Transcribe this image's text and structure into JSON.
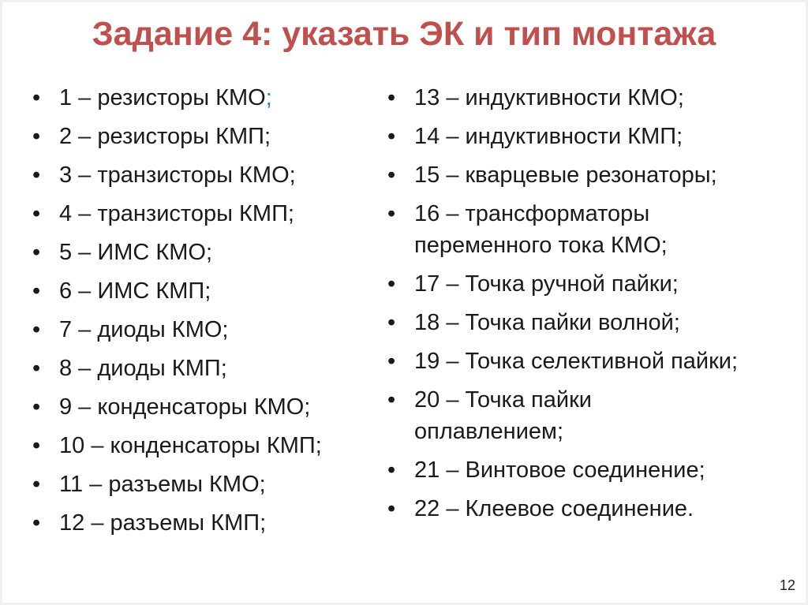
{
  "slide": {
    "title": "Задание 4: указать ЭК и тип монтажа",
    "title_color": "#c0504d",
    "text_color": "#1a1a1a",
    "accent_semicolon_color": "#1f7ec2",
    "bullet_glyph": "•",
    "page_number": "12",
    "columns": {
      "left": [
        {
          "text": "1 – резисторы КМО",
          "suffix": ";",
          "suffix_colored": true
        },
        {
          "text": "2 – резисторы КМП;"
        },
        {
          "text": "3 – транзисторы КМО;"
        },
        {
          "text": "4 – транзисторы КМП;"
        },
        {
          "text": "5 – ИМС КМО;"
        },
        {
          "text": "6 – ИМС КМП;"
        },
        {
          "text": "7 – диоды КМО;"
        },
        {
          "text": "8 – диоды КМП;"
        },
        {
          "text": "9 – конденсаторы КМО;"
        },
        {
          "text": "10 – конденсаторы КМП;"
        },
        {
          "text": "11 – разъемы КМО;"
        },
        {
          "text": "12 – разъемы КМП;"
        }
      ],
      "right": [
        {
          "text": "13 – индуктивности КМО;"
        },
        {
          "text": "14 – индуктивности КМП;"
        },
        {
          "text": "15 – кварцевые резонаторы;"
        },
        {
          "text": "16 – трансформаторы\nпеременного тока КМО;"
        },
        {
          "text": "17 – Точка ручной пайки;"
        },
        {
          "text": "18 – Точка пайки волной;"
        },
        {
          "text": "19 – Точка селективной пайки;"
        },
        {
          "text": "20 – Точка пайки\nоплавлением;"
        },
        {
          "text": "21 – Винтовое соединение;"
        },
        {
          "text": "22 – Клеевое соединение."
        }
      ]
    }
  }
}
